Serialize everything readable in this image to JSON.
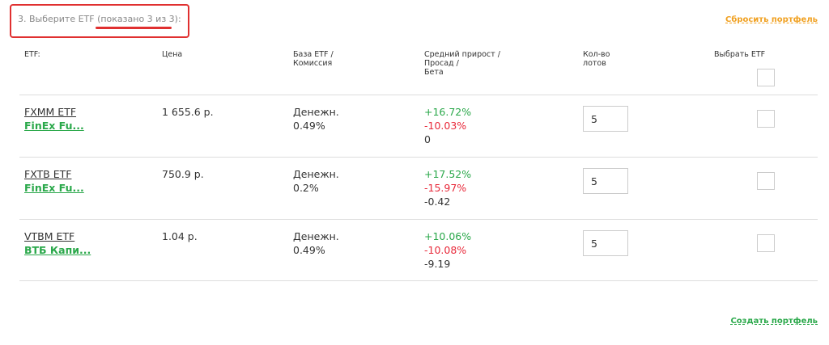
{
  "header": {
    "title": "3. Выберите ETF (показано 3 из 3):",
    "reset_link": "Сбросить портфель"
  },
  "table": {
    "columns": [
      [
        "ETF:"
      ],
      [
        "Цена"
      ],
      [
        "База ETF /",
        "Комиссия"
      ],
      [
        "Средний прирост /",
        "Просад /",
        "Бета"
      ],
      [
        "Кол-во",
        "лотов"
      ],
      [
        "Выбрать ETF"
      ]
    ],
    "rows": [
      {
        "ticker": "FXMM ETF",
        "fund": "FinEx Fu...",
        "price": "1 655.6 р.",
        "base": "Денежн.",
        "commission": "0.49%",
        "growth": "+16.72%",
        "drawdown": "-10.03%",
        "beta": "0",
        "lots": "5"
      },
      {
        "ticker": "FXTB ETF",
        "fund": "FinEx Fu...",
        "price": "750.9 р.",
        "base": "Денежн.",
        "commission": "0.2%",
        "growth": "+17.52%",
        "drawdown": "-15.97%",
        "beta": "-0.42",
        "lots": "5"
      },
      {
        "ticker": "VTBM ETF",
        "fund": "ВТБ Капи...",
        "price": "1.04 р.",
        "base": "Денежн.",
        "commission": "0.49%",
        "growth": "+10.06%",
        "drawdown": "-10.08%",
        "beta": "-9.19",
        "lots": "5"
      }
    ]
  },
  "footer": {
    "create_link": "Создать портфель"
  }
}
